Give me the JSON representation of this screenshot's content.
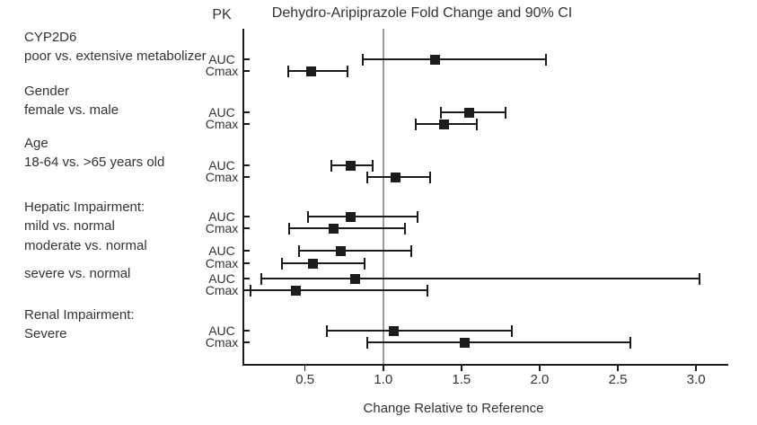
{
  "chart_data": {
    "type": "forest",
    "title": "Dehydro-Aripiprazole Fold Change and 90% CI",
    "pk_header": "PK",
    "xlabel": "Change Relative to Reference",
    "x_ticks": [
      0.5,
      1.0,
      1.5,
      2.0,
      2.5,
      3.0
    ],
    "x_tick_labels": [
      "0.5",
      "1.0",
      "1.5",
      "2.0",
      "2.5",
      "3.0"
    ],
    "xlim": [
      0.1,
      3.2
    ],
    "reference_value": 1.0,
    "legend": "none",
    "grid": false,
    "groups": [
      {
        "label_lines": [
          "CYP2D6",
          "poor vs. extensive metabolizer"
        ],
        "rows": [
          {
            "pk": "AUC",
            "value": 1.33,
            "ci_low": 0.87,
            "ci_high": 2.04
          },
          {
            "pk": "Cmax",
            "value": 0.54,
            "ci_low": 0.39,
            "ci_high": 0.77
          }
        ]
      },
      {
        "label_lines": [
          "Gender",
          "female vs. male"
        ],
        "rows": [
          {
            "pk": "AUC",
            "value": 1.55,
            "ci_low": 1.37,
            "ci_high": 1.78
          },
          {
            "pk": "Cmax",
            "value": 1.39,
            "ci_low": 1.21,
            "ci_high": 1.6
          }
        ]
      },
      {
        "label_lines": [
          "Age",
          "18-64 vs. >65 years old"
        ],
        "rows": [
          {
            "pk": "AUC",
            "value": 0.79,
            "ci_low": 0.67,
            "ci_high": 0.93
          },
          {
            "pk": "Cmax",
            "value": 1.08,
            "ci_low": 0.9,
            "ci_high": 1.3
          }
        ]
      },
      {
        "label_lines": [
          "Hepatic Impairment:",
          "mild vs. normal"
        ],
        "rows": [
          {
            "pk": "AUC",
            "value": 0.79,
            "ci_low": 0.52,
            "ci_high": 1.22
          },
          {
            "pk": "Cmax",
            "value": 0.68,
            "ci_low": 0.4,
            "ci_high": 1.14
          }
        ]
      },
      {
        "label_lines": [
          "moderate vs. normal"
        ],
        "rows": [
          {
            "pk": "AUC",
            "value": 0.73,
            "ci_low": 0.46,
            "ci_high": 1.18
          },
          {
            "pk": "Cmax",
            "value": 0.55,
            "ci_low": 0.35,
            "ci_high": 0.88
          }
        ]
      },
      {
        "label_lines": [
          "severe vs. normal"
        ],
        "rows": [
          {
            "pk": "AUC",
            "value": 0.82,
            "ci_low": 0.22,
            "ci_high": 3.02
          },
          {
            "pk": "Cmax",
            "value": 0.44,
            "ci_low": 0.15,
            "ci_high": 1.28
          }
        ]
      },
      {
        "label_lines": [
          "Renal Impairment:",
          "Severe"
        ],
        "rows": [
          {
            "pk": "AUC",
            "value": 1.07,
            "ci_low": 0.64,
            "ci_high": 1.82
          },
          {
            "pk": "Cmax",
            "value": 1.52,
            "ci_low": 0.9,
            "ci_high": 2.58
          }
        ]
      }
    ]
  },
  "colors": {
    "marker": "#1c1c1c",
    "error_bar": "#1c1c1c",
    "reference_line": "#9b9b9b",
    "axis": "#1c1c1c",
    "text": "#333333"
  }
}
